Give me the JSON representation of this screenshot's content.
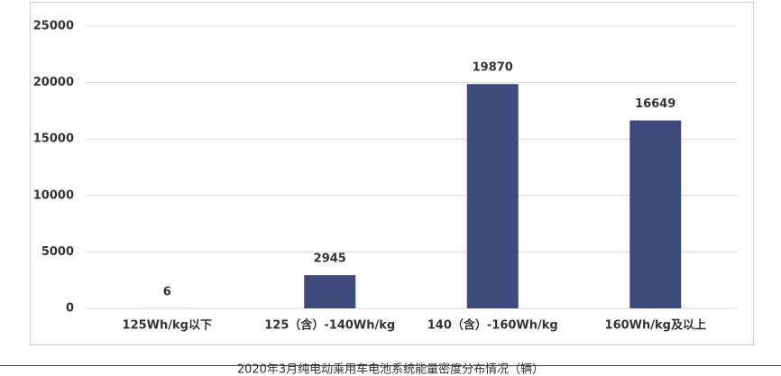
{
  "chart_data": {
    "type": "bar",
    "title": "2020年3月纯电动乘用车电池系统能量密度分布情况（辆）",
    "categories": [
      "125Wh/kg以下",
      "125（含）-140Wh/kg",
      "140（含）-160Wh/kg",
      "160Wh/kg及以上"
    ],
    "values": [
      6,
      2945,
      19870,
      16649
    ],
    "color": "#3f4a7c",
    "ylim": [
      0,
      25000
    ],
    "yticks": [
      0,
      5000,
      10000,
      15000,
      20000,
      25000
    ],
    "grid": true
  }
}
